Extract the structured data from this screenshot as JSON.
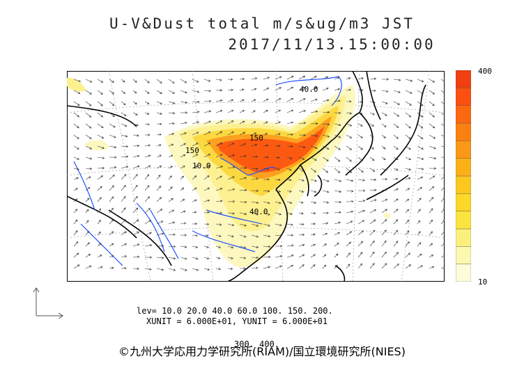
{
  "title": {
    "line1": "U-V&Dust total m/s&ug/m3 JST",
    "line2": "2017/11/13.15:00:00"
  },
  "colorbar": {
    "max_label": "400",
    "min_label": "10",
    "colors": [
      "#fcfcd8",
      "#fcf8b0",
      "#fcf07c",
      "#fce440",
      "#fcd828",
      "#fcc820",
      "#fcb018",
      "#fc9818",
      "#fc8010",
      "#fc6810",
      "#fc5010",
      "#f04010"
    ]
  },
  "map_labels": {
    "contour_a": "40.0",
    "contour_b": "150",
    "contour_c": "150",
    "contour_d": "10.0",
    "contour_e": "40.0"
  },
  "levels": {
    "line1": "lev= 10.0 20.0 40.0 60.0 100. 150. 200.",
    "line2": "300. 400."
  },
  "units": "XUNIT = 6.000E+01, YUNIT = 6.000E+01",
  "credit": "©九州大学応用力学研究所(RIAM)/国立環境研究所(NIES)"
}
